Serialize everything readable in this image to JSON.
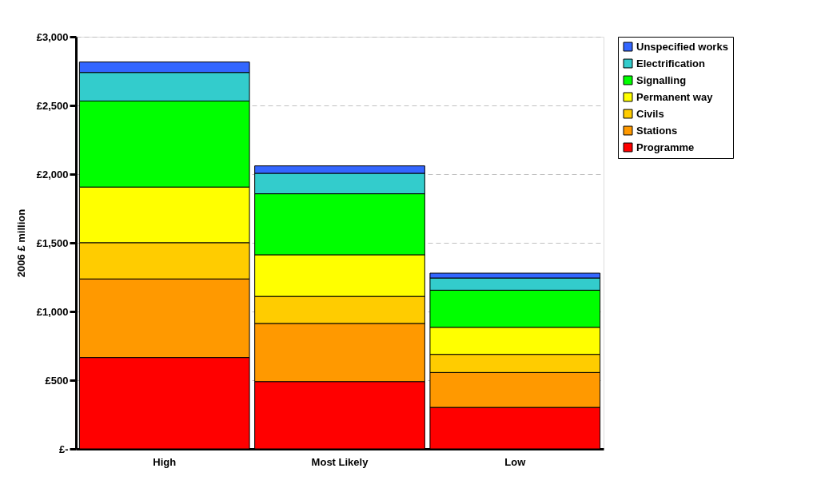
{
  "chart_data": {
    "type": "bar",
    "stacked": true,
    "ylabel": "2006 £ million",
    "categories": [
      "High",
      "Most Likely",
      "Low"
    ],
    "series": [
      {
        "name": "Programme",
        "color": "#ff0000",
        "values": [
          665,
          490,
          302
        ]
      },
      {
        "name": "Stations",
        "color": "#ff9900",
        "values": [
          572,
          423,
          254
        ]
      },
      {
        "name": "Civils",
        "color": "#ffcc00",
        "values": [
          264,
          197,
          132
        ]
      },
      {
        "name": "Permanent way",
        "color": "#ffff00",
        "values": [
          405,
          303,
          197
        ]
      },
      {
        "name": "Signalling",
        "color": "#00ff00",
        "values": [
          626,
          444,
          270
        ]
      },
      {
        "name": "Electrification",
        "color": "#33cccc",
        "values": [
          208,
          149,
          89
        ]
      },
      {
        "name": "Unspecified works",
        "color": "#3366ff",
        "values": [
          76,
          54,
          35
        ]
      }
    ],
    "ylim": [
      0,
      3000
    ],
    "yticks": [
      {
        "value": 0,
        "label": "£-"
      },
      {
        "value": 500,
        "label": "£500"
      },
      {
        "value": 1000,
        "label": "£1,000"
      },
      {
        "value": 1500,
        "label": "£1,500"
      },
      {
        "value": 2000,
        "label": "£2,000"
      },
      {
        "value": 2500,
        "label": "£2,500"
      },
      {
        "value": 3000,
        "label": "£3,000"
      }
    ],
    "grid": "y",
    "legend": "right"
  }
}
